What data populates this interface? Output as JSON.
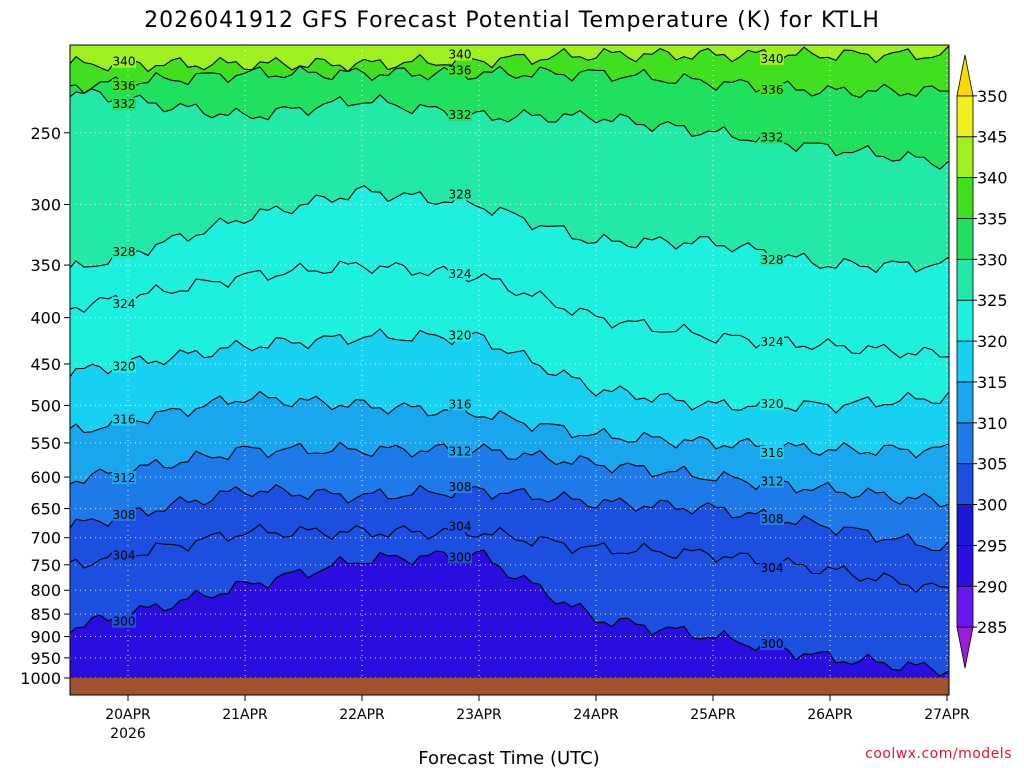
{
  "title": "2026041912 GFS Forecast Potential Temperature (K) for KTLH",
  "credit": "coolwx.com/models",
  "chart_data": {
    "type": "heatmap",
    "title": "2026041912 GFS Forecast Potential Temperature (K) for KTLH",
    "xlabel": "Forecast Time (UTC)",
    "ylabel": "",
    "x_ticks": [
      "20APR",
      "21APR",
      "22APR",
      "23APR",
      "24APR",
      "25APR",
      "26APR",
      "27APR"
    ],
    "x_tick_year": "2026",
    "y_ticks": [
      250,
      300,
      350,
      400,
      450,
      500,
      550,
      600,
      650,
      700,
      750,
      800,
      850,
      900,
      950,
      1000
    ],
    "y_scale": "log-pressure",
    "ylim": [
      1000,
      200
    ],
    "xlim": [
      "2026-04-19T12:00",
      "2026-04-27T00:00"
    ],
    "colorbar": {
      "levels": [
        285,
        290,
        295,
        300,
        305,
        310,
        315,
        320,
        325,
        330,
        335,
        340,
        345,
        350
      ],
      "colors": [
        "#9a1ed9",
        "#6a16f0",
        "#2a0ee0",
        "#1818d6",
        "#1c4ee0",
        "#1e7ae8",
        "#1aa6ee",
        "#18d0f2",
        "#1ef0e0",
        "#22e8a8",
        "#20e060",
        "#40e020",
        "#a0f020",
        "#f0f020",
        "#ffd800"
      ]
    },
    "contour_step": 4,
    "grid": true,
    "series": [
      {
        "name": "300",
        "x": [
          "20APR 00Z",
          "21APR 00Z",
          "22APR 00Z",
          "23APR 00Z",
          "24APR 00Z",
          "25APR 00Z",
          "26APR 00Z",
          "27APR 00Z"
        ],
        "p": [
          850,
          790,
          740,
          730,
          860,
          900,
          950,
          980
        ]
      },
      {
        "name": "304",
        "x": [
          "20APR 00Z",
          "21APR 00Z",
          "22APR 00Z",
          "23APR 00Z",
          "24APR 00Z",
          "25APR 00Z",
          "26APR 00Z",
          "27APR 00Z"
        ],
        "p": [
          730,
          690,
          690,
          690,
          720,
          730,
          760,
          800
        ]
      },
      {
        "name": "308",
        "x": [
          "20APR 00Z",
          "21APR 00Z",
          "22APR 00Z",
          "23APR 00Z",
          "24APR 00Z",
          "25APR 00Z",
          "26APR 00Z",
          "27APR 00Z"
        ],
        "p": [
          660,
          620,
          630,
          620,
          640,
          650,
          680,
          720
        ]
      },
      {
        "name": "312",
        "x": [
          "20APR 00Z",
          "21APR 00Z",
          "22APR 00Z",
          "23APR 00Z",
          "24APR 00Z",
          "25APR 00Z",
          "26APR 00Z",
          "27APR 00Z"
        ],
        "p": [
          590,
          560,
          560,
          560,
          580,
          600,
          620,
          640
        ]
      },
      {
        "name": "316",
        "x": [
          "20APR 00Z",
          "21APR 00Z",
          "22APR 00Z",
          "23APR 00Z",
          "24APR 00Z",
          "25APR 00Z",
          "26APR 00Z",
          "27APR 00Z"
        ],
        "p": [
          520,
          490,
          500,
          510,
          540,
          550,
          560,
          560
        ]
      },
      {
        "name": "320",
        "x": [
          "20APR 00Z",
          "21APR 00Z",
          "22APR 00Z",
          "23APR 00Z",
          "24APR 00Z",
          "25APR 00Z",
          "26APR 00Z",
          "27APR 00Z"
        ],
        "p": [
          450,
          430,
          420,
          420,
          480,
          500,
          500,
          490
        ]
      },
      {
        "name": "324",
        "x": [
          "20APR 00Z",
          "21APR 00Z",
          "22APR 00Z",
          "23APR 00Z",
          "24APR 00Z",
          "25APR 00Z",
          "26APR 00Z",
          "27APR 00Z"
        ],
        "p": [
          380,
          360,
          350,
          360,
          400,
          420,
          430,
          440
        ]
      },
      {
        "name": "328",
        "x": [
          "20APR 00Z",
          "21APR 00Z",
          "22APR 00Z",
          "23APR 00Z",
          "24APR 00Z",
          "25APR 00Z",
          "26APR 00Z",
          "27APR 00Z"
        ],
        "p": [
          340,
          310,
          290,
          300,
          330,
          330,
          350,
          350
        ]
      },
      {
        "name": "332",
        "x": [
          "20APR 00Z",
          "21APR 00Z",
          "22APR 00Z",
          "23APR 00Z",
          "24APR 00Z",
          "25APR 00Z",
          "26APR 00Z",
          "27APR 00Z"
        ],
        "p": [
          230,
          240,
          230,
          240,
          240,
          250,
          260,
          270
        ]
      },
      {
        "name": "336",
        "x": [
          "20APR 00Z",
          "21APR 00Z",
          "22APR 00Z",
          "23APR 00Z",
          "24APR 00Z",
          "25APR 00Z",
          "26APR 00Z",
          "27APR 00Z"
        ],
        "p": [
          220,
          215,
          215,
          215,
          215,
          220,
          225,
          225
        ]
      },
      {
        "name": "340",
        "x": [
          "20APR 00Z",
          "21APR 00Z",
          "22APR 00Z",
          "23APR 00Z",
          "24APR 00Z",
          "25APR 00Z",
          "26APR 00Z",
          "27APR 00Z"
        ],
        "p": [
          210,
          210,
          210,
          208,
          205,
          205,
          205,
          205
        ]
      }
    ]
  }
}
